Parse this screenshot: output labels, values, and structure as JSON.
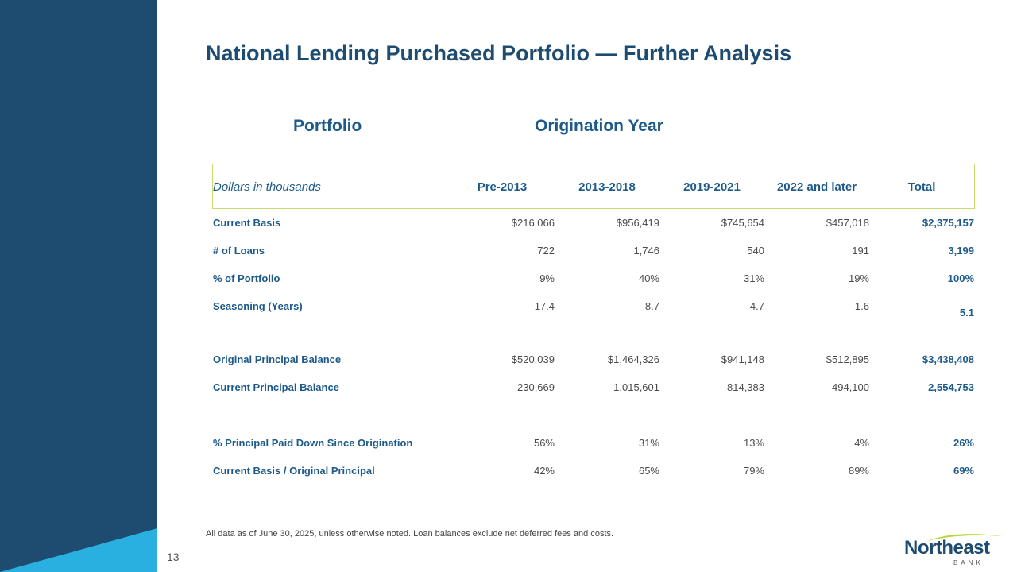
{
  "slide": {
    "title": "National Lending Purchased Portfolio — Further Analysis",
    "page_number": "13",
    "footnote": "All data as of June 30, 2025, unless otherwise noted. Loan balances exclude net deferred fees and costs."
  },
  "colors": {
    "sidebar": "#1e4b70",
    "accent_light_blue": "#2ab0e0",
    "title": "#1e4b70",
    "label": "#1d5a8a",
    "header_border": "#c5dc6a"
  },
  "table": {
    "group_headers": {
      "portfolio": "Portfolio",
      "origination": "Origination Year"
    },
    "unit_label": "Dollars in thousands",
    "columns": [
      "Pre-2013",
      "2013-2018",
      "2019-2021",
      "2022 and later",
      "Total"
    ],
    "rows": [
      {
        "label": "Current Basis",
        "values": [
          "$216,066",
          "$956,419",
          "$745,654",
          "$457,018",
          "$2,375,157"
        ]
      },
      {
        "label": "# of Loans",
        "values": [
          "722",
          "1,746",
          "540",
          "191",
          "3,199"
        ]
      },
      {
        "label": "% of Portfolio",
        "values": [
          "9%",
          "40%",
          "31%",
          "19%",
          "100%"
        ]
      },
      {
        "label": "Seasoning (Years)",
        "values": [
          "17.4",
          "8.7",
          "4.7",
          "1.6",
          "5.1"
        ]
      },
      {
        "label": "Original Principal Balance",
        "values": [
          "$520,039",
          "$1,464,326",
          "$941,148",
          "$512,895",
          "$3,438,408"
        ]
      },
      {
        "label": "Current Principal Balance",
        "values": [
          "230,669",
          "1,015,601",
          "814,383",
          "494,100",
          "2,554,753"
        ]
      },
      {
        "label": "% Principal Paid Down Since Origination",
        "values": [
          "56%",
          "31%",
          "13%",
          "4%",
          "26%"
        ]
      },
      {
        "label": "Current Basis / Original Principal",
        "values": [
          "42%",
          "65%",
          "79%",
          "89%",
          "69%"
        ]
      }
    ]
  },
  "logo": {
    "name": "Northeast",
    "sub": "BANK"
  }
}
